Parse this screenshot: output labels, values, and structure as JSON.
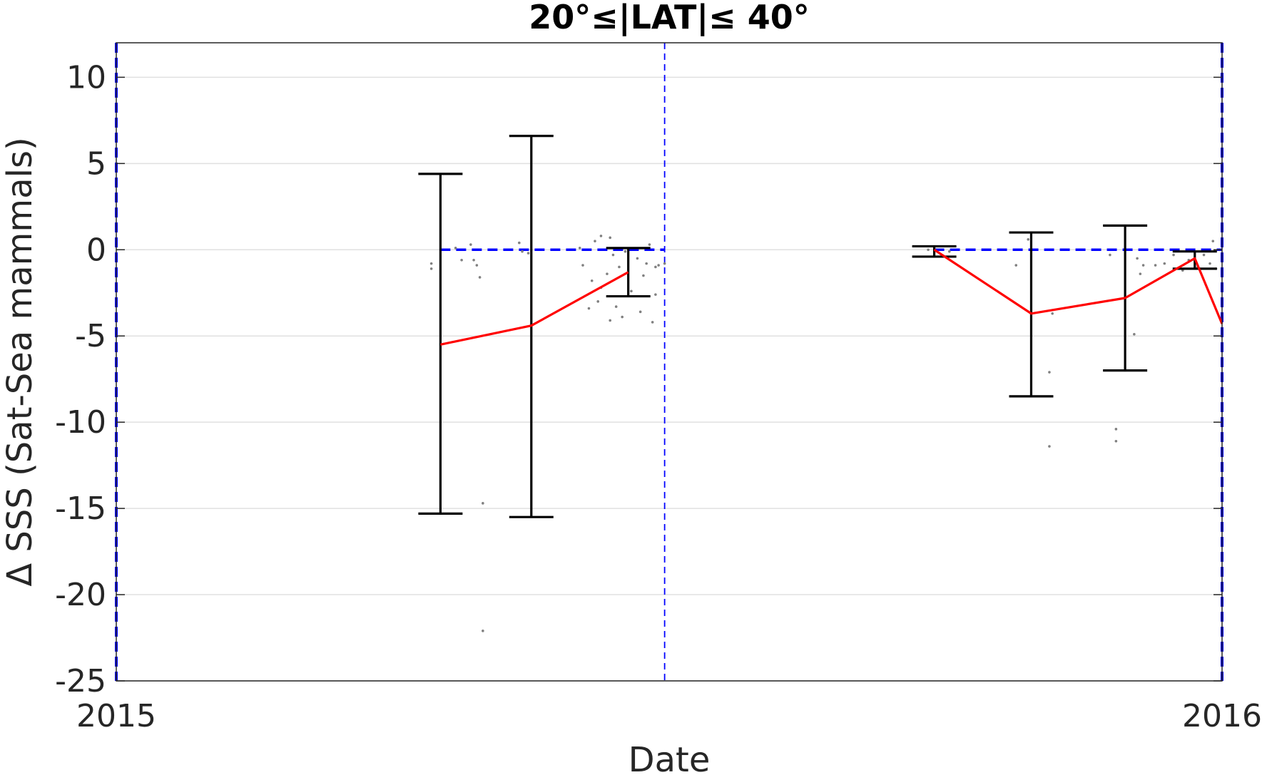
{
  "chart_data": {
    "type": "scatter",
    "title": "20°≤|LAT|≤ 40°",
    "xlabel": "Date",
    "ylabel": "Δ SSS (Sat-Sea mammals)",
    "xlim": [
      "2015-01-01",
      "2016-01-01"
    ],
    "ylim": [
      -25,
      12
    ],
    "xticks": [
      "2015",
      "2016"
    ],
    "yticks": [
      10,
      5,
      0,
      -5,
      -10,
      -15,
      -20,
      -25
    ],
    "grid": "horizontal",
    "colors": {
      "mean_line": "#ff0000",
      "zero_line": "#0000ff",
      "error_bars": "#000000",
      "points": "#808080",
      "grid": "#e0e0e0"
    },
    "vertical_markers": [
      "2015-01-01",
      "2015-07-01",
      "2016-01-01"
    ],
    "zero_reference": {
      "y": 0,
      "segments": [
        [
          "2015-04-18",
          "2015-07-01"
        ],
        [
          "2015-09-28",
          "2016-01-01"
        ]
      ]
    },
    "series": [
      {
        "type": "line",
        "points": [
          {
            "x": "2015-04-18",
            "y": -5.5
          },
          {
            "x": "2015-05-18",
            "y": -4.4
          },
          {
            "x": "2015-06-19",
            "y": -1.3
          }
        ]
      },
      {
        "type": "line",
        "points": [
          {
            "x": "2015-09-28",
            "y": 0.0
          },
          {
            "x": "2015-10-30",
            "y": -3.7
          },
          {
            "x": "2015-11-30",
            "y": -2.8
          },
          {
            "x": "2015-12-23",
            "y": -0.5
          },
          {
            "x": "2016-01-01",
            "y": -4.3
          }
        ]
      },
      {
        "type": "errorbar",
        "bars": [
          {
            "x": "2015-04-18",
            "low": -15.3,
            "high": 4.4
          },
          {
            "x": "2015-05-18",
            "low": -15.5,
            "high": 6.6
          },
          {
            "x": "2015-06-19",
            "low": -2.7,
            "high": 0.1
          },
          {
            "x": "2015-09-28",
            "low": -0.4,
            "high": 0.2
          },
          {
            "x": "2015-10-30",
            "low": -8.5,
            "high": 1.0
          },
          {
            "x": "2015-11-30",
            "low": -7.0,
            "high": 1.4
          },
          {
            "x": "2015-12-23",
            "low": -1.1,
            "high": -0.1
          }
        ]
      },
      {
        "type": "scatter",
        "points": [
          {
            "x": "2015-04-15",
            "y": -0.8
          },
          {
            "x": "2015-04-15",
            "y": -1.1
          },
          {
            "x": "2015-04-23",
            "y": 0.1
          },
          {
            "x": "2015-04-25",
            "y": -0.6
          },
          {
            "x": "2015-04-28",
            "y": 0.3
          },
          {
            "x": "2015-04-29",
            "y": -0.6
          },
          {
            "x": "2015-04-30",
            "y": -0.9
          },
          {
            "x": "2015-05-01",
            "y": -1.6
          },
          {
            "x": "2015-05-02",
            "y": -14.7
          },
          {
            "x": "2015-05-02",
            "y": -22.1
          },
          {
            "x": "2015-05-14",
            "y": 0.4
          },
          {
            "x": "2015-05-15",
            "y": -0.1
          },
          {
            "x": "2015-05-17",
            "y": -0.2
          },
          {
            "x": "2015-06-03",
            "y": 0.1
          },
          {
            "x": "2015-06-04",
            "y": -0.9
          },
          {
            "x": "2015-06-06",
            "y": -3.4
          },
          {
            "x": "2015-06-07",
            "y": -1.8
          },
          {
            "x": "2015-06-08",
            "y": 0.5
          },
          {
            "x": "2015-06-09",
            "y": -3.0
          },
          {
            "x": "2015-06-10",
            "y": -2.2
          },
          {
            "x": "2015-06-10",
            "y": 0.8
          },
          {
            "x": "2015-06-12",
            "y": -1.4
          },
          {
            "x": "2015-06-13",
            "y": 0.7
          },
          {
            "x": "2015-06-13",
            "y": -4.1
          },
          {
            "x": "2015-06-14",
            "y": -0.3
          },
          {
            "x": "2015-06-15",
            "y": -3.3
          },
          {
            "x": "2015-06-16",
            "y": -1.0
          },
          {
            "x": "2015-06-17",
            "y": -3.9
          },
          {
            "x": "2015-06-18",
            "y": -0.1
          },
          {
            "x": "2015-06-20",
            "y": -2.4
          },
          {
            "x": "2015-06-22",
            "y": -0.5
          },
          {
            "x": "2015-06-23",
            "y": -3.6
          },
          {
            "x": "2015-06-24",
            "y": -1.5
          },
          {
            "x": "2015-06-25",
            "y": -0.8
          },
          {
            "x": "2015-06-26",
            "y": 0.3
          },
          {
            "x": "2015-06-27",
            "y": -4.2
          },
          {
            "x": "2015-06-28",
            "y": -2.6
          },
          {
            "x": "2015-06-28",
            "y": -1.0
          },
          {
            "x": "2015-06-29",
            "y": -0.9
          },
          {
            "x": "2015-07-01",
            "y": -0.8
          },
          {
            "x": "2015-09-26",
            "y": 0.0
          },
          {
            "x": "2015-10-03",
            "y": -0.1
          },
          {
            "x": "2015-10-25",
            "y": -0.9
          },
          {
            "x": "2015-10-29",
            "y": 0.6
          },
          {
            "x": "2015-11-06",
            "y": -3.7
          },
          {
            "x": "2015-11-05",
            "y": -7.1
          },
          {
            "x": "2015-11-05",
            "y": -11.4
          },
          {
            "x": "2015-11-25",
            "y": -0.3
          },
          {
            "x": "2015-11-27",
            "y": -10.4
          },
          {
            "x": "2015-11-27",
            "y": -11.1
          },
          {
            "x": "2015-12-03",
            "y": -4.9
          },
          {
            "x": "2015-12-04",
            "y": -0.5
          },
          {
            "x": "2015-12-05",
            "y": -1.4
          },
          {
            "x": "2015-12-06",
            "y": -0.9
          },
          {
            "x": "2015-12-10",
            "y": -0.9
          },
          {
            "x": "2015-12-13",
            "y": -0.8
          },
          {
            "x": "2015-12-16",
            "y": -0.3
          },
          {
            "x": "2015-12-19",
            "y": -1.2
          },
          {
            "x": "2015-12-21",
            "y": -0.6
          },
          {
            "x": "2015-12-24",
            "y": -1.0
          },
          {
            "x": "2015-12-26",
            "y": -0.3
          },
          {
            "x": "2015-12-28",
            "y": -0.8
          },
          {
            "x": "2015-12-29",
            "y": 0.5
          },
          {
            "x": "2015-12-30",
            "y": -1.1
          }
        ]
      }
    ]
  }
}
